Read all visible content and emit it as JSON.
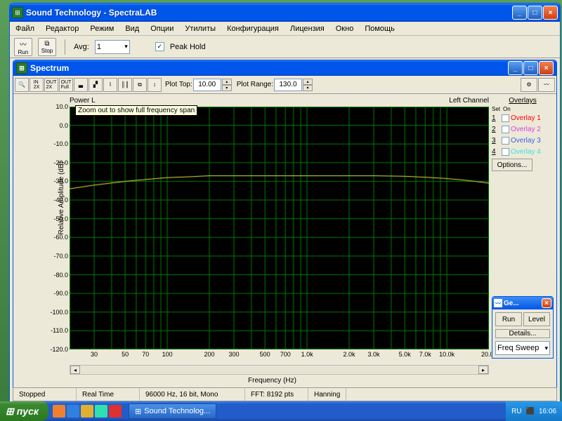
{
  "main_window": {
    "title": "Sound Technology - SpectraLAB",
    "menubar": [
      "Файл",
      "Редактор",
      "Режим",
      "Вид",
      "Опции",
      "Утилиты",
      "Конфигурация",
      "Лицензия",
      "Окно",
      "Помощь"
    ],
    "toolbar": {
      "run": "Run",
      "stop": "Stop",
      "avg_label": "Avg:",
      "avg_value": "1",
      "peakhold_label": "Peak Hold",
      "peakhold_checked": "✓"
    }
  },
  "spectrum_window": {
    "title": "Spectrum",
    "toolbar": {
      "plot_top_label": "Plot Top:",
      "plot_top_value": "10.00",
      "plot_range_label": "Plot Range:",
      "plot_range_value": "130.0"
    },
    "tooltip": "Zoom out to show full frequency span",
    "chart": {
      "type": "line",
      "title_left": "Power L",
      "title_right": "Left Channel",
      "ylabel": "Relative Amplitude (dB)",
      "xlabel": "Frequency (Hz)",
      "ylim": [
        -120,
        10
      ],
      "ytick_step": 10,
      "yticks": [
        "10.0",
        "0.0",
        "-10.0",
        "-20.0",
        "-30.0",
        "-40.0",
        "-50.0",
        "-60.0",
        "-70.0",
        "-80.0",
        "-90.0",
        "-100.0",
        "-110.0",
        "-120.0"
      ],
      "xscale": "log",
      "xlim": [
        20,
        20000
      ],
      "xticks_major": [
        20,
        30,
        50,
        70,
        100,
        200,
        300,
        500,
        700,
        1000,
        2000,
        3000,
        5000,
        7000,
        10000,
        20000
      ],
      "xticks_labels": [
        "",
        "30",
        "50",
        "70",
        "100",
        "200",
        "300",
        "500",
        "700",
        "1.0k",
        "2.0k",
        "3.0k",
        "5.0k",
        "7.0k",
        "10.0k",
        "20.0k"
      ],
      "grid_color": "#008000",
      "background_color": "#000000",
      "line_color": "#e8e840",
      "line_width": 1,
      "data": [
        [
          20,
          -34
        ],
        [
          30,
          -32
        ],
        [
          50,
          -30
        ],
        [
          70,
          -29
        ],
        [
          100,
          -28
        ],
        [
          150,
          -27.5
        ],
        [
          200,
          -27
        ],
        [
          300,
          -27
        ],
        [
          500,
          -27
        ],
        [
          700,
          -27
        ],
        [
          1000,
          -27
        ],
        [
          2000,
          -27
        ],
        [
          3000,
          -27
        ],
        [
          5000,
          -27.3
        ],
        [
          7000,
          -27.8
        ],
        [
          10000,
          -28.5
        ],
        [
          14000,
          -29.5
        ],
        [
          18000,
          -30.5
        ],
        [
          20000,
          -31
        ]
      ]
    },
    "overlays": {
      "heading": "Overlays",
      "set_label": "Set",
      "on_label": "On",
      "items": [
        {
          "idx": "1",
          "label": "Overlay 1",
          "color": "#ff0000"
        },
        {
          "idx": "2",
          "label": "Overlay 2",
          "color": "#e040e0"
        },
        {
          "idx": "3",
          "label": "Overlay 3",
          "color": "#4060e0"
        },
        {
          "idx": "4",
          "label": "Overlay 4",
          "color": "#40e0e0"
        }
      ],
      "options_btn": "Options..."
    }
  },
  "gen_window": {
    "title": "Ge...",
    "run_btn": "Run",
    "level_btn": "Level",
    "details_btn": "Details...",
    "freq_combo": "Freq Sweep"
  },
  "statusbar": {
    "status": "Stopped",
    "mode": "Real Time",
    "format": "96000 Hz, 16 bit, Mono",
    "fft": "FFT: 8192 pts",
    "window": "Hanning"
  },
  "taskbar": {
    "start": "пуск",
    "task": "Sound Technolog...",
    "lang": "RU",
    "time": "16:06"
  }
}
